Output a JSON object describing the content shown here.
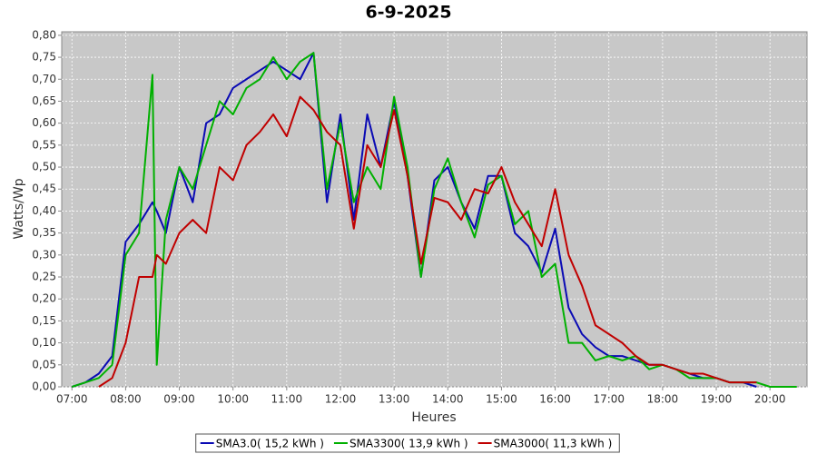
{
  "chart_data": {
    "type": "line",
    "title": "6-9-2025",
    "x_label": "Heures",
    "y_label": "Watts/Wp",
    "x": [
      7.0,
      7.25,
      7.5,
      7.75,
      8.0,
      8.25,
      8.5,
      8.58,
      8.75,
      9.0,
      9.25,
      9.5,
      9.75,
      10.0,
      10.25,
      10.5,
      10.75,
      11.0,
      11.25,
      11.5,
      11.75,
      12.0,
      12.25,
      12.5,
      12.75,
      13.0,
      13.25,
      13.5,
      13.75,
      14.0,
      14.25,
      14.5,
      14.75,
      15.0,
      15.25,
      15.5,
      15.75,
      16.0,
      16.25,
      16.5,
      16.75,
      17.0,
      17.25,
      17.5,
      17.75,
      18.0,
      18.25,
      18.5,
      18.75,
      19.0,
      19.25,
      19.5,
      19.75,
      20.0,
      20.25,
      20.5
    ],
    "series": [
      {
        "name": "SMA3.0( 15,2 kWh )",
        "color": "#0a0ab4",
        "values": [
          0,
          0.01,
          0.03,
          0.07,
          0.33,
          0.37,
          0.42,
          0.4,
          0.35,
          0.5,
          0.42,
          0.6,
          0.62,
          0.68,
          0.7,
          0.72,
          0.74,
          0.72,
          0.7,
          0.76,
          0.42,
          0.62,
          0.38,
          0.62,
          0.5,
          0.65,
          0.48,
          0.25,
          0.47,
          0.5,
          0.42,
          0.36,
          0.48,
          0.48,
          0.35,
          0.32,
          0.26,
          0.36,
          0.18,
          0.12,
          0.09,
          0.07,
          0.07,
          0.06,
          0.05,
          0.05,
          0.04,
          0.03,
          0.02,
          0.02,
          0.01,
          0.01,
          0,
          null,
          null,
          null
        ]
      },
      {
        "name": "SMA3300( 13,9 kWh )",
        "color": "#00b000",
        "values": [
          0,
          0.01,
          0.02,
          0.05,
          0.3,
          0.35,
          0.71,
          0.05,
          0.38,
          0.5,
          0.45,
          0.55,
          0.65,
          0.62,
          0.68,
          0.7,
          0.75,
          0.7,
          0.74,
          0.76,
          0.45,
          0.6,
          0.42,
          0.5,
          0.45,
          0.66,
          0.5,
          0.25,
          0.45,
          0.52,
          0.42,
          0.34,
          0.46,
          0.48,
          0.37,
          0.4,
          0.25,
          0.28,
          0.1,
          0.1,
          0.06,
          0.07,
          0.06,
          0.07,
          0.04,
          0.05,
          0.04,
          0.02,
          0.02,
          0.02,
          0.01,
          0.01,
          0.01,
          0,
          0,
          0
        ]
      },
      {
        "name": "SMA3000( 11,3 kWh )",
        "color": "#c00000",
        "values": [
          null,
          null,
          0,
          0.02,
          0.1,
          0.25,
          0.25,
          0.3,
          0.28,
          0.35,
          0.38,
          0.35,
          0.5,
          0.47,
          0.55,
          0.58,
          0.62,
          0.57,
          0.66,
          0.63,
          0.58,
          0.55,
          0.36,
          0.55,
          0.5,
          0.63,
          0.48,
          0.28,
          0.43,
          0.42,
          0.38,
          0.45,
          0.44,
          0.5,
          0.42,
          0.37,
          0.32,
          0.45,
          0.3,
          0.23,
          0.14,
          0.12,
          0.1,
          0.07,
          0.05,
          0.05,
          0.04,
          0.03,
          0.03,
          0.02,
          0.01,
          0.01,
          0.01,
          null,
          null,
          null
        ]
      }
    ],
    "xlim": [
      6.81,
      20.69
    ],
    "ylim": [
      0,
      0.808
    ],
    "xticks": [
      {
        "value": 7,
        "label": "07:00"
      },
      {
        "value": 8,
        "label": "08:00"
      },
      {
        "value": 9,
        "label": "09:00"
      },
      {
        "value": 10,
        "label": "10:00"
      },
      {
        "value": 11,
        "label": "11:00"
      },
      {
        "value": 12,
        "label": "12:00"
      },
      {
        "value": 13,
        "label": "13:00"
      },
      {
        "value": 14,
        "label": "14:00"
      },
      {
        "value": 15,
        "label": "15:00"
      },
      {
        "value": 16,
        "label": "16:00"
      },
      {
        "value": 17,
        "label": "17:00"
      },
      {
        "value": 18,
        "label": "18:00"
      },
      {
        "value": 19,
        "label": "19:00"
      },
      {
        "value": 20,
        "label": "20:00"
      }
    ],
    "yticks": [
      {
        "value": 0,
        "label": "0,00"
      },
      {
        "value": 0.05,
        "label": "0,05"
      },
      {
        "value": 0.1,
        "label": "0,10"
      },
      {
        "value": 0.15,
        "label": "0,15"
      },
      {
        "value": 0.2,
        "label": "0,20"
      },
      {
        "value": 0.25,
        "label": "0,25"
      },
      {
        "value": 0.3,
        "label": "0,30"
      },
      {
        "value": 0.35,
        "label": "0,35"
      },
      {
        "value": 0.4,
        "label": "0,40"
      },
      {
        "value": 0.45,
        "label": "0,45"
      },
      {
        "value": 0.5,
        "label": "0,50"
      },
      {
        "value": 0.55,
        "label": "0,55"
      },
      {
        "value": 0.6,
        "label": "0,60"
      },
      {
        "value": 0.65,
        "label": "0,65"
      },
      {
        "value": 0.7,
        "label": "0,70"
      },
      {
        "value": 0.75,
        "label": "0,75"
      },
      {
        "value": 0.8,
        "label": "0,80"
      }
    ],
    "grid": true,
    "legend_position": "bottom"
  }
}
